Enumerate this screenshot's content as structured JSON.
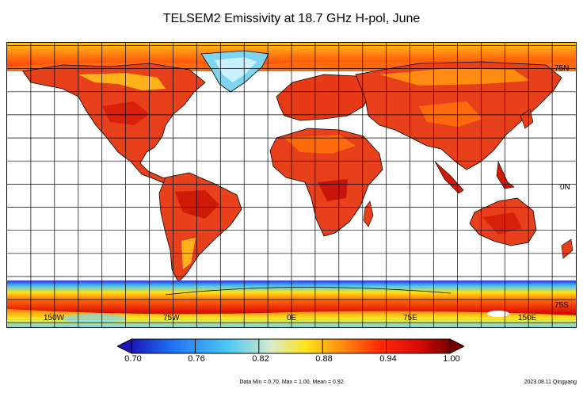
{
  "title": "TELSEM2 Emissivity at 18.7 GHz H-pol, June",
  "map": {
    "lat_labels": [
      "75N",
      "0N",
      "75S"
    ],
    "lon_labels": [
      "150W",
      "75W",
      "0E",
      "75E",
      "150E"
    ]
  },
  "colorbar": {
    "ticks": [
      "0.70",
      "0.76",
      "0.82",
      "0.88",
      "0.94",
      "1.00"
    ],
    "colors": [
      "#1b17b8",
      "#1f6cf2",
      "#49c7f6",
      "#d8ecc8",
      "#ffe318",
      "#ff8c10",
      "#ff2a04",
      "#d80b03",
      "#7a0000"
    ]
  },
  "stats": "Data Min = 0.70, Max = 1.00, Mean = 0.92",
  "credit": "2023.08.11 Qingyang"
}
